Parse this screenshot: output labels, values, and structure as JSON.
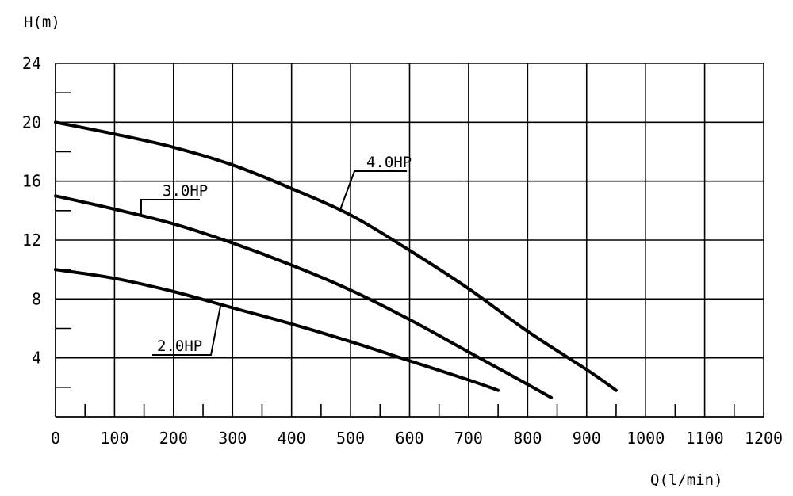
{
  "chart_data": {
    "type": "line",
    "xlabel": "Q(l/min)",
    "ylabel": "H(m)",
    "xlim": [
      0,
      1200
    ],
    "ylim": [
      0,
      24
    ],
    "xticks": [
      "0",
      "100",
      "200",
      "300",
      "400",
      "500",
      "600",
      "700",
      "800",
      "900",
      "1000",
      "1100",
      "1200"
    ],
    "yticks": [
      "4",
      "8",
      "12",
      "16",
      "20",
      "24"
    ],
    "grid": true,
    "series": [
      {
        "name": "2.0HP",
        "x": [
          0,
          100,
          200,
          300,
          400,
          500,
          600,
          700,
          750
        ],
        "y": [
          10.0,
          9.4,
          8.5,
          7.4,
          6.3,
          5.1,
          3.8,
          2.5,
          1.8
        ]
      },
      {
        "name": "3.0HP",
        "x": [
          0,
          100,
          200,
          300,
          400,
          500,
          600,
          700,
          800,
          840
        ],
        "y": [
          15.0,
          14.1,
          13.1,
          11.8,
          10.3,
          8.6,
          6.6,
          4.4,
          2.2,
          1.3
        ]
      },
      {
        "name": "4.0HP",
        "x": [
          0,
          100,
          200,
          300,
          400,
          500,
          600,
          700,
          800,
          900,
          950
        ],
        "y": [
          20.0,
          19.2,
          18.3,
          17.1,
          15.5,
          13.7,
          11.3,
          8.7,
          5.8,
          3.2,
          1.8
        ]
      }
    ],
    "annotations": [
      {
        "text": "2.0HP",
        "series": "2.0HP"
      },
      {
        "text": "3.0HP",
        "series": "3.0HP"
      },
      {
        "text": "4.0HP",
        "series": "4.0HP"
      }
    ]
  }
}
